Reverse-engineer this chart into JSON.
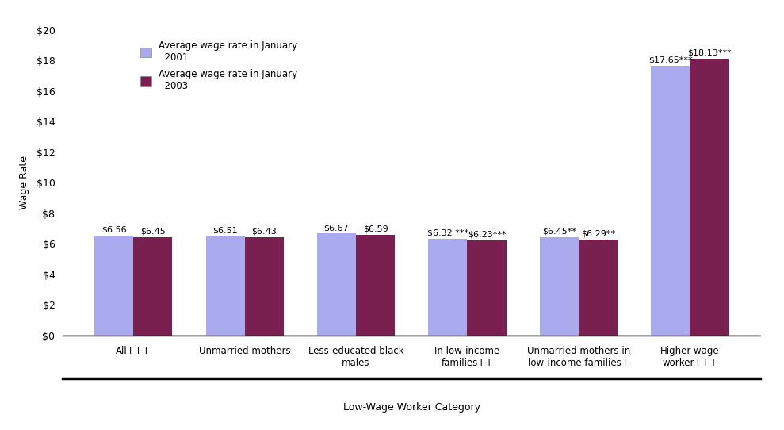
{
  "categories": [
    "All+++",
    "Unmarried mothers",
    "Less-educated black\nmales",
    "In low-income\nfamilies++",
    "Unmarried mothers in\nlow-income families+",
    "Higher-wage\nworker+++"
  ],
  "values_2001": [
    6.56,
    6.51,
    6.67,
    6.32,
    6.45,
    17.65
  ],
  "values_2003": [
    6.45,
    6.43,
    6.59,
    6.23,
    6.29,
    18.13
  ],
  "labels_2001": [
    "$6.56",
    "$6.51",
    "$6.67",
    "$6.32 ***",
    "$6.45**",
    "$17.65***"
  ],
  "labels_2003": [
    "$6.45",
    "$6.43",
    "$6.59",
    "$6.23***",
    "$6.29**",
    "$18.13***"
  ],
  "color_2001": "#aaaaee",
  "color_2003": "#7a2050",
  "ylabel": "Wage Rate",
  "xlabel": "Low-Wage Worker Category",
  "ylim": [
    0,
    20
  ],
  "yticks": [
    0,
    2,
    4,
    6,
    8,
    10,
    12,
    14,
    16,
    18,
    20
  ],
  "ytick_labels": [
    "$0",
    "$2",
    "$4",
    "$6",
    "$8",
    "$10",
    "$12",
    "$14",
    "$16",
    "$18",
    "$20"
  ],
  "legend_label_2001": "Average wage rate in January\n  2001",
  "legend_label_2003": "Average wage rate in January\n  2003",
  "bar_width": 0.35,
  "figsize": [
    9.89,
    5.42
  ],
  "dpi": 100
}
